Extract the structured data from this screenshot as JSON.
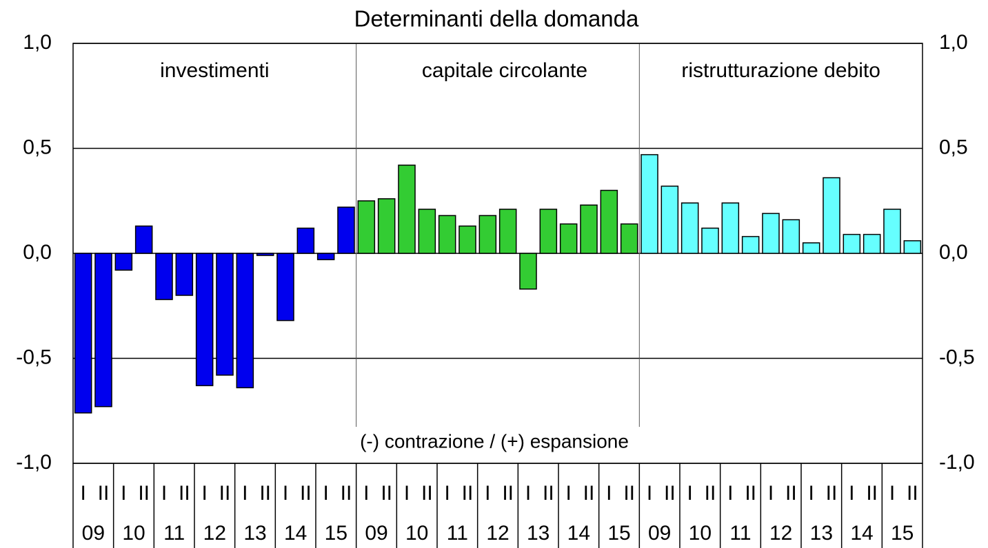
{
  "chart_data": {
    "type": "bar",
    "title": "Determinanti della domanda",
    "annotation": "(-) contrazione / (+) espansione",
    "categories": [
      "I",
      "II",
      "I",
      "II",
      "I",
      "II",
      "I",
      "II",
      "I",
      "II",
      "I",
      "II",
      "I",
      "II"
    ],
    "category_groups": [
      "09",
      "10",
      "11",
      "12",
      "13",
      "14",
      "15"
    ],
    "series": [
      {
        "name": "investimenti",
        "color": "#0000ee",
        "values": [
          -0.76,
          -0.73,
          -0.08,
          0.13,
          -0.22,
          -0.2,
          -0.63,
          -0.58,
          -0.64,
          -0.01,
          -0.32,
          0.12,
          -0.03,
          0.22
        ]
      },
      {
        "name": "capitale circolante",
        "color": "#33cc33",
        "values": [
          0.25,
          0.26,
          0.42,
          0.21,
          0.18,
          0.13,
          0.18,
          0.21,
          -0.17,
          0.21,
          0.14,
          0.23,
          0.3,
          0.14
        ]
      },
      {
        "name": "ristrutturazione debito",
        "color": "#66ffff",
        "values": [
          0.47,
          0.32,
          0.24,
          0.12,
          0.24,
          0.08,
          0.19,
          0.16,
          0.05,
          0.36,
          0.09,
          0.09,
          0.21,
          0.06
        ]
      }
    ],
    "ylim": [
      -1,
      1
    ],
    "yticks": [
      {
        "value": -1,
        "label": "-1,0"
      },
      {
        "value": -0.5,
        "label": "-0,5"
      },
      {
        "value": 0,
        "label": "0,0"
      },
      {
        "value": 0.5,
        "label": "0,5"
      },
      {
        "value": 1,
        "label": "1,0"
      }
    ],
    "y2lim": [
      -1,
      1
    ],
    "y2ticks": [
      {
        "value": -1,
        "label": "-1,0"
      },
      {
        "value": -0.5,
        "label": "-0,5"
      },
      {
        "value": 0,
        "label": "0,0"
      },
      {
        "value": 0.5,
        "label": "0,5"
      },
      {
        "value": 1,
        "label": "1,0"
      }
    ],
    "grid": true
  }
}
